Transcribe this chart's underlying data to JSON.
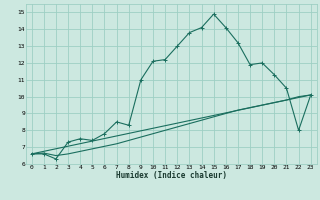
{
  "xlabel": "Humidex (Indice chaleur)",
  "xlim": [
    -0.5,
    23.5
  ],
  "ylim": [
    6.0,
    15.5
  ],
  "yticks": [
    6,
    7,
    8,
    9,
    10,
    11,
    12,
    13,
    14,
    15
  ],
  "xticks": [
    0,
    1,
    2,
    3,
    4,
    5,
    6,
    7,
    8,
    9,
    10,
    11,
    12,
    13,
    14,
    15,
    16,
    17,
    18,
    19,
    20,
    21,
    22,
    23
  ],
  "bg_color": "#cce8e0",
  "grid_color": "#9ecfc4",
  "line_color": "#1a6e5e",
  "main_x": [
    0,
    1,
    2,
    3,
    4,
    5,
    6,
    7,
    8,
    9,
    10,
    11,
    12,
    13,
    14,
    15,
    16,
    17,
    18,
    19,
    20,
    21,
    22,
    23
  ],
  "main_y": [
    6.6,
    6.6,
    6.3,
    7.3,
    7.5,
    7.4,
    7.8,
    8.5,
    8.3,
    11.0,
    12.1,
    12.2,
    13.0,
    13.8,
    14.1,
    14.9,
    14.1,
    13.2,
    11.9,
    12.0,
    11.3,
    10.5,
    8.0,
    10.1
  ],
  "line2_x": [
    0,
    1,
    2,
    3,
    4,
    5,
    6,
    7,
    8,
    9,
    10,
    11,
    12,
    13,
    14,
    15,
    16,
    17,
    18,
    19,
    20,
    21,
    22,
    23
  ],
  "line2_y": [
    6.6,
    6.65,
    6.5,
    6.6,
    6.75,
    6.9,
    7.05,
    7.2,
    7.4,
    7.6,
    7.8,
    8.0,
    8.2,
    8.4,
    8.6,
    8.8,
    9.0,
    9.2,
    9.35,
    9.5,
    9.65,
    9.8,
    10.0,
    10.1
  ],
  "line3_x": [
    0,
    23
  ],
  "line3_y": [
    6.6,
    10.1
  ]
}
